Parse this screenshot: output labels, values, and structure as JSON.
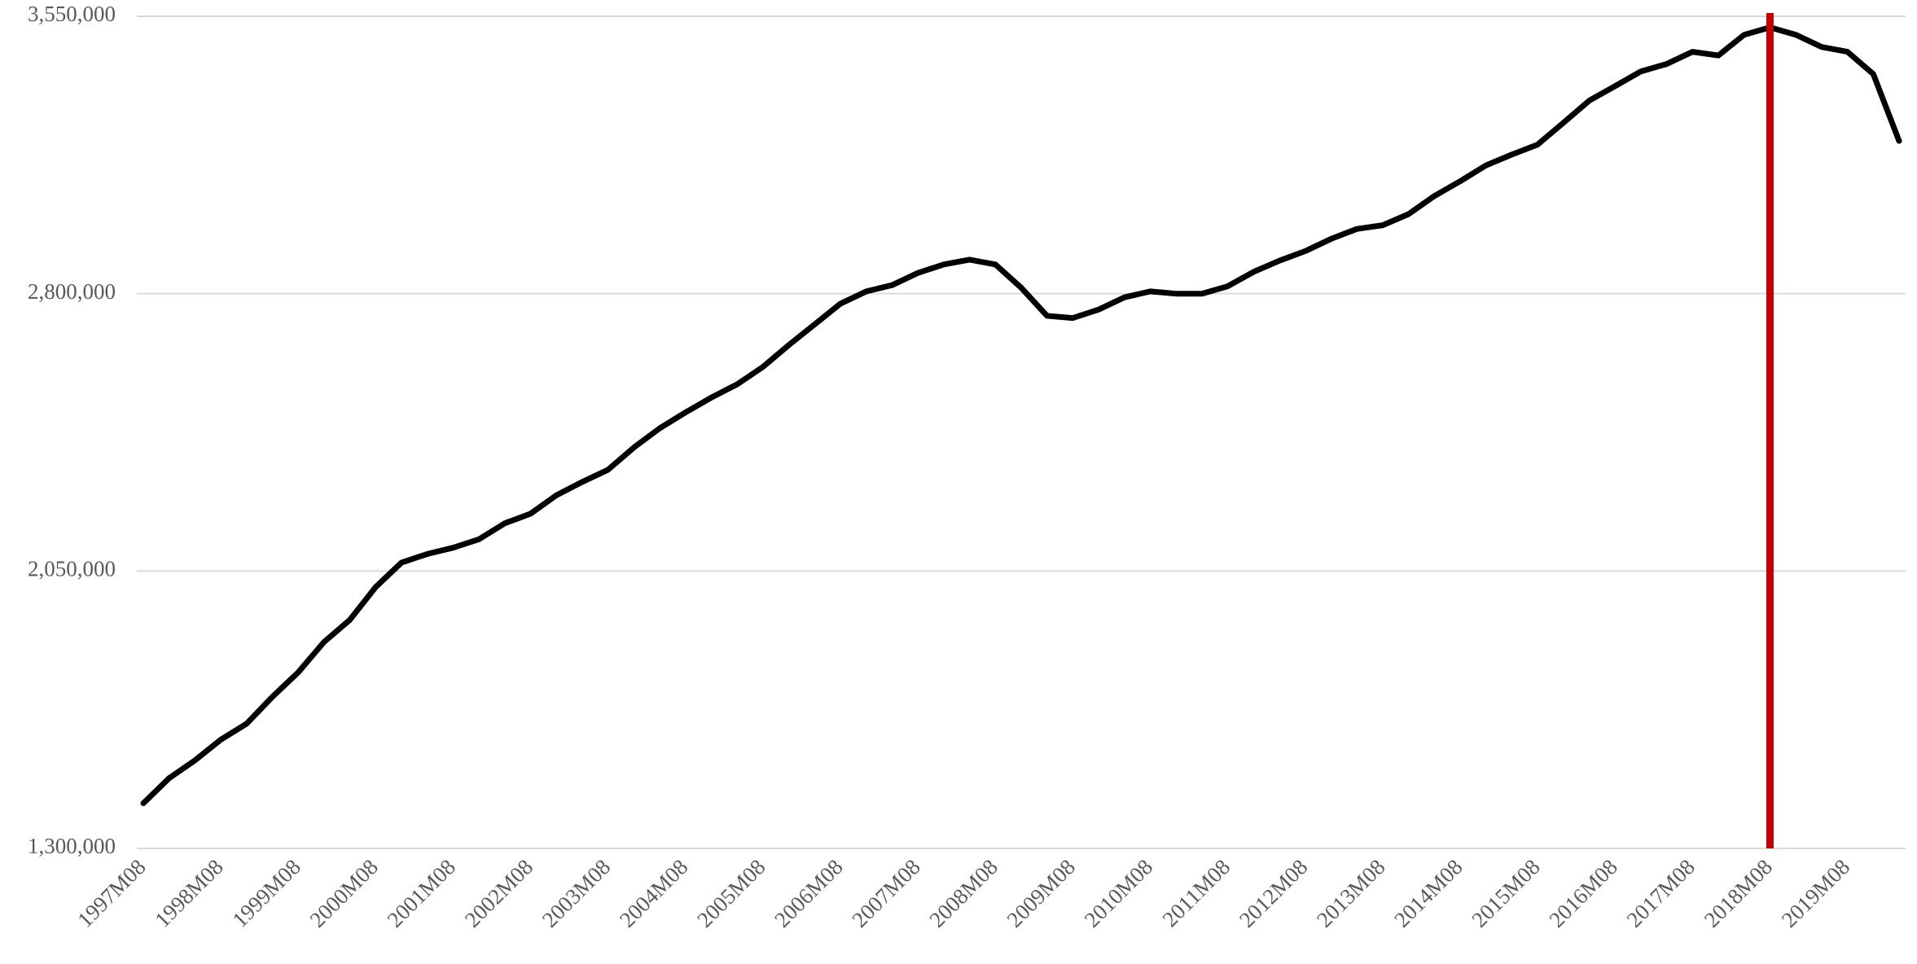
{
  "chart_data": {
    "type": "line",
    "categories": [
      "1997M08",
      null,
      null,
      "1998M08",
      null,
      null,
      "1999M08",
      null,
      null,
      "2000M08",
      null,
      null,
      "2001M08",
      null,
      null,
      "2002M08",
      null,
      null,
      "2003M08",
      null,
      null,
      "2004M08",
      null,
      null,
      "2005M08",
      null,
      null,
      "2006M08",
      null,
      null,
      "2007M08",
      null,
      null,
      "2008M08",
      null,
      null,
      "2009M08",
      null,
      null,
      "2010M08",
      null,
      null,
      "2011M08",
      null,
      null,
      "2012M08",
      null,
      null,
      "2013M08",
      null,
      null,
      "2014M08",
      null,
      null,
      "2015M08",
      null,
      null,
      "2016M08",
      null,
      null,
      "2017M08",
      null,
      null,
      "2018M08",
      null,
      null,
      "2019M08",
      null,
      null
    ],
    "series": [
      {
        "color": "#000000",
        "values": [
          1422000,
          1490000,
          1538000,
          1594000,
          1637000,
          1710000,
          1776000,
          1858000,
          1918000,
          2007000,
          2073000,
          2096000,
          2113000,
          2136000,
          2179000,
          2205000,
          2255000,
          2291000,
          2324000,
          2384000,
          2436000,
          2479000,
          2519000,
          2555000,
          2602000,
          2661000,
          2717000,
          2773000,
          2806000,
          2823000,
          2856000,
          2879000,
          2892000,
          2879000,
          2816000,
          2740000,
          2734000,
          2757000,
          2790000,
          2806000,
          2800000,
          2800000,
          2820000,
          2859000,
          2889000,
          2915000,
          2948000,
          2975000,
          2985000,
          3015000,
          3064000,
          3104000,
          3147000,
          3176000,
          3203000,
          3262000,
          3322000,
          3361000,
          3401000,
          3421000,
          3454000,
          3444000,
          3500000,
          3520000,
          3500000,
          3467000,
          3454000,
          3394000,
          3213000
        ]
      }
    ],
    "ylim": [
      1300000,
      3550000
    ],
    "yticks": [
      {
        "value": 1300000,
        "label": "1,300,000"
      },
      {
        "value": 2050000,
        "label": "2,050,000"
      },
      {
        "value": 2800000,
        "label": "2,800,000"
      },
      {
        "value": 3550000,
        "label": "3,550,000"
      }
    ],
    "grid": true,
    "highlight": {
      "category": 63,
      "color": "#c00000"
    }
  }
}
